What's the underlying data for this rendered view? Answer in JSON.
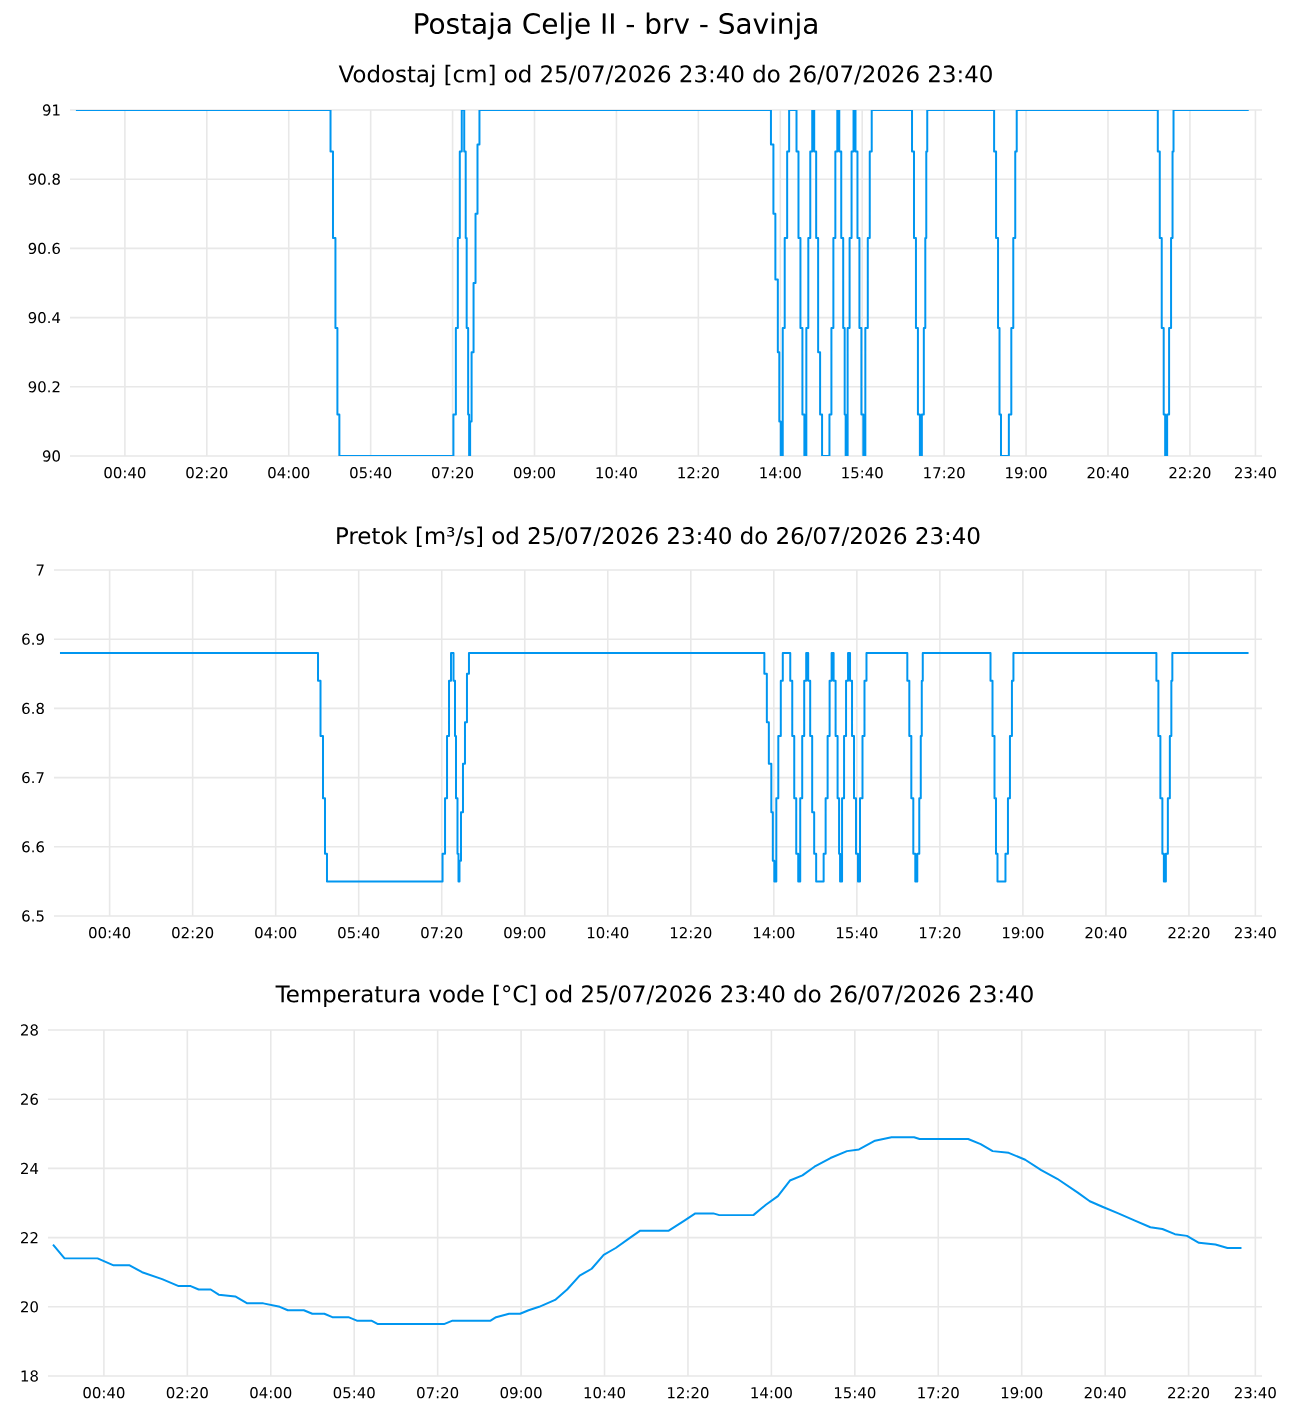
{
  "chart_data": [
    {
      "type": "step",
      "title": "Postaja Celje II - brv - Savinja",
      "subtitle": "Vodostaj [cm] od 25/07/2026 23:40 do 26/07/2026 23:40",
      "color": "#0096f0",
      "grid": true,
      "xlim": [
        -0.45,
        23.8
      ],
      "ylim": [
        90,
        91
      ],
      "yticks": [
        90,
        90.2,
        90.4,
        90.6,
        90.8,
        91
      ],
      "xticks": [
        {
          "value": 0.6667,
          "label": "00:40"
        },
        {
          "value": 2.3333,
          "label": "02:20"
        },
        {
          "value": 4,
          "label": "04:00"
        },
        {
          "value": 5.6667,
          "label": "05:40"
        },
        {
          "value": 7.3333,
          "label": "07:20"
        },
        {
          "value": 9,
          "label": "09:00"
        },
        {
          "value": 10.6667,
          "label": "10:40"
        },
        {
          "value": 12.3333,
          "label": "12:20"
        },
        {
          "value": 14,
          "label": "14:00"
        },
        {
          "value": 15.6667,
          "label": "15:40"
        },
        {
          "value": 17.3333,
          "label": "17:20"
        },
        {
          "value": 19,
          "label": "19:00"
        },
        {
          "value": 20.6667,
          "label": "20:40"
        },
        {
          "value": 22.3333,
          "label": "22:20"
        },
        {
          "value": 23.6667,
          "label": "23:40"
        }
      ],
      "x": [
        -0.33,
        4.85,
        4.9,
        4.95,
        4.99,
        5.03,
        7.35,
        7.4,
        7.44,
        7.48,
        7.52,
        7.57,
        7.6,
        7.62,
        7.65,
        7.67,
        7.69,
        7.72,
        7.76,
        7.8,
        7.84,
        7.88,
        13.81,
        13.86,
        13.9,
        13.95,
        13.98,
        14.01,
        14.05,
        14.09,
        14.14,
        14.18,
        14.33,
        14.37,
        14.41,
        14.45,
        14.49,
        14.53,
        14.57,
        14.61,
        14.65,
        14.69,
        14.73,
        14.77,
        14.81,
        14.85,
        15.0,
        15.04,
        15.08,
        15.12,
        15.16,
        15.2,
        15.24,
        15.28,
        15.31,
        15.33,
        15.37,
        15.41,
        15.45,
        15.49,
        15.53,
        15.57,
        15.61,
        15.65,
        15.69,
        15.73,
        15.78,
        15.82,
        15.86,
        16.68,
        16.72,
        16.76,
        16.8,
        16.84,
        16.88,
        16.92,
        16.95,
        16.97,
        16.99,
        18.35,
        18.39,
        18.43,
        18.46,
        18.49,
        18.65,
        18.7,
        18.74,
        18.78,
        18.81,
        21.68,
        21.72,
        21.76,
        21.8,
        21.83,
        21.87,
        21.91,
        21.95,
        21.98,
        22.0,
        23.53
      ],
      "values": [
        91,
        90.88,
        90.63,
        90.37,
        90.12,
        90,
        90.12,
        90.37,
        90.63,
        90.88,
        91,
        90.88,
        90.63,
        90.37,
        90.12,
        90,
        90.1,
        90.3,
        90.5,
        90.7,
        90.9,
        91,
        90.9,
        90.7,
        90.51,
        90.3,
        90.1,
        90,
        90.37,
        90.63,
        90.88,
        91,
        90.88,
        90.63,
        90.37,
        90.12,
        90,
        90.37,
        90.63,
        90.88,
        91,
        90.88,
        90.63,
        90.3,
        90.12,
        90,
        90.12,
        90.37,
        90.63,
        90.88,
        91,
        90.88,
        90.63,
        90.37,
        90.12,
        90,
        90.37,
        90.63,
        90.88,
        91,
        90.88,
        90.63,
        90.37,
        90.12,
        90,
        90.37,
        90.63,
        90.88,
        91,
        90.88,
        90.63,
        90.37,
        90.12,
        90,
        90.12,
        90.37,
        90.63,
        90.88,
        91,
        90.88,
        90.63,
        90.37,
        90.12,
        90,
        90.12,
        90.37,
        90.63,
        90.88,
        91,
        90.88,
        90.63,
        90.37,
        90.12,
        90,
        90.12,
        90.37,
        90.63,
        90.88,
        91,
        91
      ]
    },
    {
      "type": "step",
      "title": "Pretok [m³/s] od 25/07/2026 23:40 do 26/07/2026 23:40",
      "color": "#0096f0",
      "grid": true,
      "xlim": [
        -0.45,
        23.8
      ],
      "ylim": [
        6.5,
        7
      ],
      "yticks": [
        6.5,
        6.6,
        6.7,
        6.8,
        6.9,
        7
      ],
      "xticks": [
        {
          "value": 0.6667,
          "label": "00:40"
        },
        {
          "value": 2.3333,
          "label": "02:20"
        },
        {
          "value": 4,
          "label": "04:00"
        },
        {
          "value": 5.6667,
          "label": "05:40"
        },
        {
          "value": 7.3333,
          "label": "07:20"
        },
        {
          "value": 9,
          "label": "09:00"
        },
        {
          "value": 10.6667,
          "label": "10:40"
        },
        {
          "value": 12.3333,
          "label": "12:20"
        },
        {
          "value": 14,
          "label": "14:00"
        },
        {
          "value": 15.6667,
          "label": "15:40"
        },
        {
          "value": 17.3333,
          "label": "17:20"
        },
        {
          "value": 19,
          "label": "19:00"
        },
        {
          "value": 20.6667,
          "label": "20:40"
        },
        {
          "value": 22.3333,
          "label": "22:20"
        },
        {
          "value": 23.6667,
          "label": "23:40"
        }
      ],
      "x": [
        -0.33,
        4.85,
        4.9,
        4.95,
        4.99,
        5.03,
        7.35,
        7.4,
        7.44,
        7.48,
        7.52,
        7.57,
        7.6,
        7.62,
        7.65,
        7.67,
        7.69,
        7.72,
        7.76,
        7.8,
        7.84,
        7.88,
        13.81,
        13.86,
        13.9,
        13.95,
        13.98,
        14.01,
        14.05,
        14.09,
        14.14,
        14.18,
        14.33,
        14.37,
        14.41,
        14.45,
        14.49,
        14.53,
        14.57,
        14.61,
        14.65,
        14.69,
        14.73,
        14.77,
        14.81,
        14.85,
        15.0,
        15.04,
        15.08,
        15.12,
        15.16,
        15.2,
        15.24,
        15.28,
        15.31,
        15.33,
        15.37,
        15.41,
        15.45,
        15.49,
        15.53,
        15.57,
        15.61,
        15.65,
        15.69,
        15.73,
        15.78,
        15.82,
        15.86,
        16.68,
        16.72,
        16.76,
        16.8,
        16.84,
        16.88,
        16.92,
        16.95,
        16.97,
        16.99,
        18.35,
        18.39,
        18.43,
        18.46,
        18.49,
        18.65,
        18.7,
        18.74,
        18.78,
        18.81,
        21.68,
        21.72,
        21.76,
        21.8,
        21.83,
        21.87,
        21.91,
        21.95,
        21.98,
        22.0,
        23.53
      ],
      "values": [
        6.88,
        6.84,
        6.76,
        6.67,
        6.59,
        6.55,
        6.59,
        6.67,
        6.76,
        6.84,
        6.88,
        6.84,
        6.76,
        6.67,
        6.59,
        6.55,
        6.58,
        6.65,
        6.72,
        6.78,
        6.85,
        6.88,
        6.85,
        6.78,
        6.72,
        6.65,
        6.58,
        6.55,
        6.67,
        6.76,
        6.84,
        6.88,
        6.84,
        6.76,
        6.67,
        6.59,
        6.55,
        6.67,
        6.76,
        6.84,
        6.88,
        6.84,
        6.76,
        6.65,
        6.59,
        6.55,
        6.59,
        6.67,
        6.76,
        6.84,
        6.88,
        6.84,
        6.76,
        6.67,
        6.59,
        6.55,
        6.67,
        6.76,
        6.84,
        6.88,
        6.84,
        6.76,
        6.67,
        6.59,
        6.55,
        6.67,
        6.76,
        6.84,
        6.88,
        6.84,
        6.76,
        6.67,
        6.59,
        6.55,
        6.59,
        6.67,
        6.76,
        6.84,
        6.88,
        6.84,
        6.76,
        6.67,
        6.59,
        6.55,
        6.59,
        6.67,
        6.76,
        6.84,
        6.88,
        6.84,
        6.76,
        6.67,
        6.59,
        6.55,
        6.59,
        6.67,
        6.76,
        6.84,
        6.88,
        6.88
      ]
    },
    {
      "type": "line",
      "title": "Temperatura vode [°C] od 25/07/2026 23:40 do 26/07/2026 23:40",
      "color": "#0096f0",
      "grid": true,
      "xlim": [
        -0.45,
        23.8
      ],
      "ylim": [
        18,
        28
      ],
      "yticks": [
        18,
        20,
        22,
        24,
        26,
        28
      ],
      "xticks": [
        {
          "value": 0.6667,
          "label": "00:40"
        },
        {
          "value": 2.3333,
          "label": "02:20"
        },
        {
          "value": 4,
          "label": "04:00"
        },
        {
          "value": 5.6667,
          "label": "05:40"
        },
        {
          "value": 7.3333,
          "label": "07:20"
        },
        {
          "value": 9,
          "label": "09:00"
        },
        {
          "value": 10.6667,
          "label": "10:40"
        },
        {
          "value": 12.3333,
          "label": "12:20"
        },
        {
          "value": 14,
          "label": "14:00"
        },
        {
          "value": 15.6667,
          "label": "15:40"
        },
        {
          "value": 17.3333,
          "label": "17:20"
        },
        {
          "value": 19,
          "label": "19:00"
        },
        {
          "value": 20.6667,
          "label": "20:40"
        },
        {
          "value": 22.3333,
          "label": "22:20"
        },
        {
          "value": 23.6667,
          "label": "23:40"
        }
      ],
      "x": [
        -0.35,
        -0.12,
        0.54,
        0.86,
        1.18,
        1.43,
        1.83,
        2.16,
        2.4,
        2.56,
        2.8,
        2.96,
        3.29,
        3.53,
        3.85,
        4.18,
        4.34,
        4.66,
        4.83,
        5.07,
        5.23,
        5.55,
        5.72,
        6.01,
        6.14,
        7.46,
        7.63,
        8.39,
        8.5,
        8.76,
        8.98,
        9.15,
        9.36,
        9.68,
        9.92,
        10.17,
        10.41,
        10.65,
        10.89,
        11.18,
        11.38,
        11.95,
        12.27,
        12.48,
        12.84,
        12.96,
        13.64,
        13.89,
        14.13,
        14.37,
        14.62,
        14.86,
        15.18,
        15.51,
        15.75,
        16.07,
        16.4,
        16.85,
        16.96,
        17.93,
        18.18,
        18.42,
        18.74,
        19.07,
        19.39,
        19.71,
        20.12,
        20.36,
        20.6,
        20.93,
        21.25,
        21.57,
        21.81,
        22.06,
        22.3,
        22.54,
        22.87,
        23.11,
        23.39
      ],
      "values": [
        21.8,
        21.4,
        21.4,
        21.2,
        21.2,
        21.0,
        20.8,
        20.6,
        20.6,
        20.5,
        20.5,
        20.35,
        20.3,
        20.1,
        20.1,
        20.0,
        19.9,
        19.9,
        19.8,
        19.8,
        19.7,
        19.7,
        19.6,
        19.6,
        19.5,
        19.5,
        19.6,
        19.6,
        19.7,
        19.8,
        19.8,
        19.9,
        20.0,
        20.2,
        20.5,
        20.9,
        21.1,
        21.5,
        21.7,
        22.0,
        22.2,
        22.2,
        22.5,
        22.7,
        22.7,
        22.65,
        22.65,
        22.95,
        23.2,
        23.65,
        23.8,
        24.05,
        24.3,
        24.5,
        24.55,
        24.8,
        24.9,
        24.9,
        24.85,
        24.85,
        24.7,
        24.5,
        24.45,
        24.25,
        23.95,
        23.7,
        23.3,
        23.05,
        22.9,
        22.7,
        22.5,
        22.3,
        22.25,
        22.1,
        22.05,
        21.85,
        21.8,
        21.7,
        21.7
      ]
    }
  ]
}
